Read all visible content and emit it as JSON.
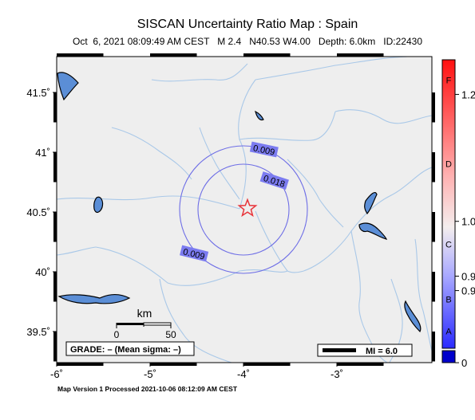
{
  "header": {
    "title": "SISCAN Uncertainty Ratio Map : Spain",
    "event_line": "Oct  6, 2021 08:09:49 AM CEST   M 2.4   N40.53 W4.00   Depth: 6.0km   ID:22430"
  },
  "footer": {
    "version_line": "Map Version 1 Processed 2021-10-06 08:12:09 AM CEST"
  },
  "map": {
    "lon_range": [
      -6.0,
      -2.0
    ],
    "lat_range": [
      39.25,
      41.8
    ],
    "x_ticks": [
      {
        "value": -6,
        "label": "-6˚"
      },
      {
        "value": -5,
        "label": "-5˚"
      },
      {
        "value": -4,
        "label": "-4˚"
      },
      {
        "value": -3,
        "label": "-3˚"
      }
    ],
    "y_ticks": [
      {
        "value": 41.5,
        "label": "41.5˚"
      },
      {
        "value": 41,
        "label": "41˚"
      },
      {
        "value": 40.5,
        "label": "40.5˚"
      },
      {
        "value": 40,
        "label": "40˚"
      },
      {
        "value": 39.5,
        "label": "39.5˚"
      }
    ],
    "epicenter": {
      "lon": -4.0,
      "lat": 40.53
    },
    "contours": [
      {
        "label": "0.009",
        "radius_km": 57,
        "label_lon": -3.78,
        "label_lat": 41.02
      },
      {
        "label": "0.018",
        "radius_km": 40,
        "label_lon": -3.67,
        "label_lat": 40.76
      },
      {
        "label": "0.009",
        "radius_km": 57,
        "label_lon": -4.53,
        "label_lat": 40.15
      }
    ],
    "scale_bar": {
      "title": "km",
      "start_label": "0",
      "end_label": "50"
    },
    "grade_text": "GRADE: – (Mean sigma: –)",
    "mi_legend": "MI = 6.0"
  },
  "colors": {
    "land": "#eeeeee",
    "rivers": "#a9c8e8",
    "lakes": "#5b8ed6",
    "contour": "#6e6ee6",
    "contour_label_bg": "#7b7bf0",
    "epicenter": "#e8343a"
  },
  "colorbar": {
    "grade_labels": [
      {
        "label": "F",
        "frac": 0.93
      },
      {
        "label": "D",
        "frac": 0.64
      },
      {
        "label": "C",
        "frac": 0.36
      },
      {
        "label": "B",
        "frac": 0.17
      },
      {
        "label": "A",
        "frac": 0.06
      }
    ],
    "value_labels": [
      {
        "label": "1.2",
        "frac": 0.88
      },
      {
        "label": "1.0",
        "frac": 0.44
      },
      {
        "label": "0.9",
        "frac": 0.25
      },
      {
        "label": "0.9",
        "frac": 0.2
      },
      {
        "label": "0",
        "frac": -0.05
      }
    ]
  }
}
